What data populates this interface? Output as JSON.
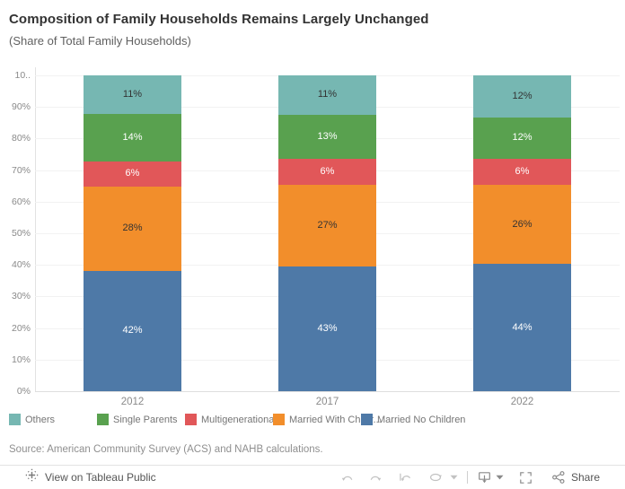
{
  "title": "Composition of Family Households Remains Largely Unchanged",
  "subtitle": "(Share of Total Family Households)",
  "source_note": "Source: American Community Survey (ACS) and NAHB calculations.",
  "chart_data": {
    "type": "bar",
    "stacked": true,
    "title": "Composition of Family Households Remains Largely Unchanged",
    "subtitle": "(Share of Total Family Households)",
    "categories": [
      "2012",
      "2017",
      "2022"
    ],
    "series": [
      {
        "name": "Others",
        "legend_label": "Others",
        "color": "#76b7b2",
        "label_color": "#333333",
        "values": [
          11,
          11,
          12
        ]
      },
      {
        "name": "Single Parents",
        "legend_label": "Single Parents",
        "color": "#59a14f",
        "label_color": "#ffffff",
        "values": [
          14,
          13,
          12
        ]
      },
      {
        "name": "Multigenerational",
        "legend_label": "Multigenerational",
        "color": "#e15759",
        "label_color": "#ffffff",
        "values": [
          6,
          6,
          6
        ]
      },
      {
        "name": "Married With Children",
        "legend_label": "Married With Childr...",
        "color": "#f28e2b",
        "label_color": "#333333",
        "values": [
          28,
          27,
          26
        ]
      },
      {
        "name": "Married No Children",
        "legend_label": "Married No Children",
        "color": "#4e79a7",
        "label_color": "#ffffff",
        "values": [
          42,
          43,
          44
        ]
      }
    ],
    "value_suffix": "%",
    "ylim": [
      0,
      100
    ],
    "y_ticks": [
      "10..",
      "90%",
      "80%",
      "70%",
      "60%",
      "50%",
      "40%",
      "30%",
      "20%",
      "10%",
      "0%"
    ],
    "grid": true,
    "legend_position": "bottom"
  },
  "toolbar": {
    "view_link": "View on Tableau Public",
    "share_label": "Share"
  }
}
